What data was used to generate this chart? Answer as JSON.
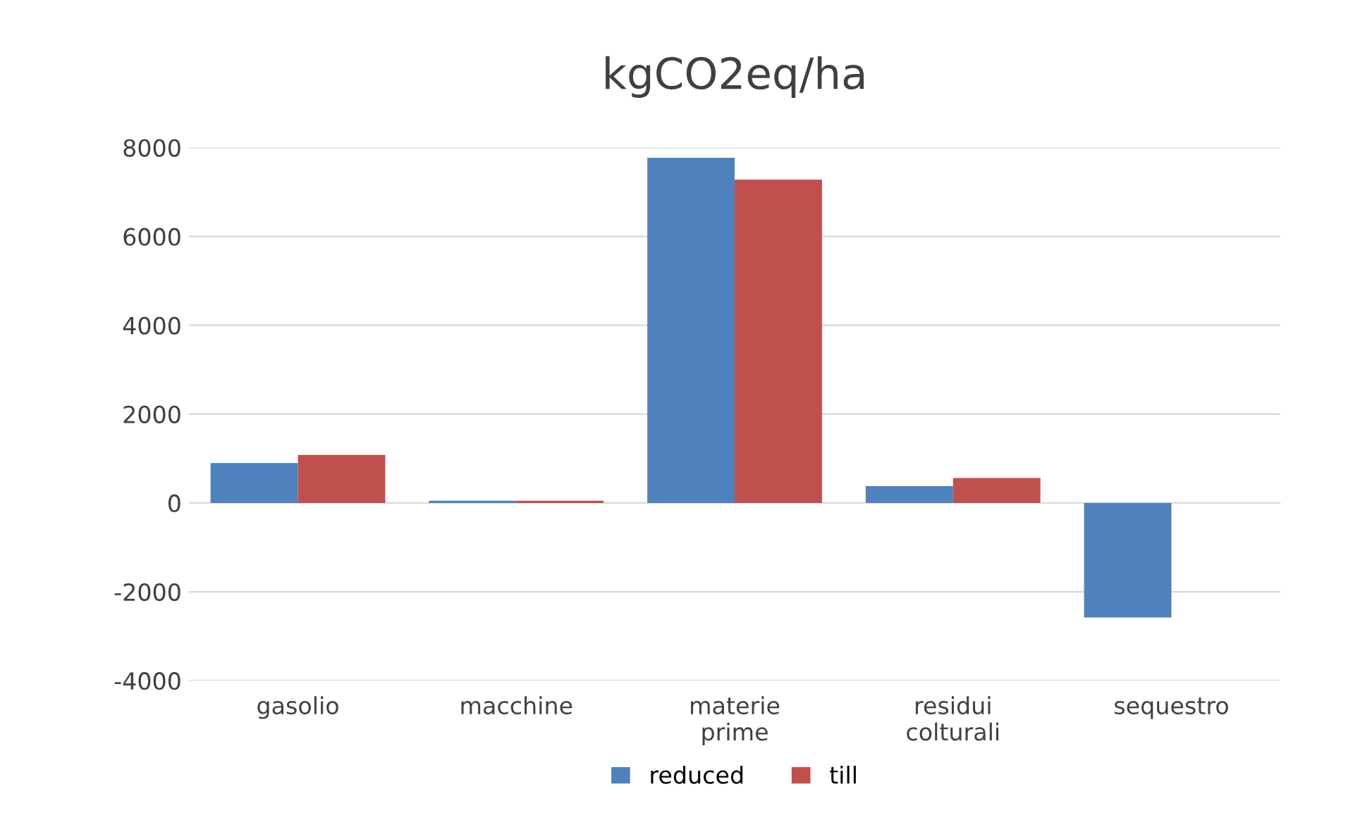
{
  "chart_data": {
    "type": "bar",
    "title": "kgCO2eq/ha",
    "categories": [
      "gasolio",
      "macchine",
      "materie\nprime",
      "residui\ncolturali",
      "sequestro"
    ],
    "series": [
      {
        "name": "reduced",
        "color": "#4f81bd",
        "values": [
          900,
          50,
          7770,
          380,
          -2580
        ]
      },
      {
        "name": "till",
        "color": "#c0504d",
        "values": [
          1080,
          50,
          7280,
          560,
          0
        ]
      }
    ],
    "ylim": [
      -4000,
      8000
    ],
    "yticks": [
      -4000,
      -2000,
      0,
      2000,
      4000,
      6000,
      8000
    ],
    "grid": "y",
    "legend": "bottom"
  }
}
